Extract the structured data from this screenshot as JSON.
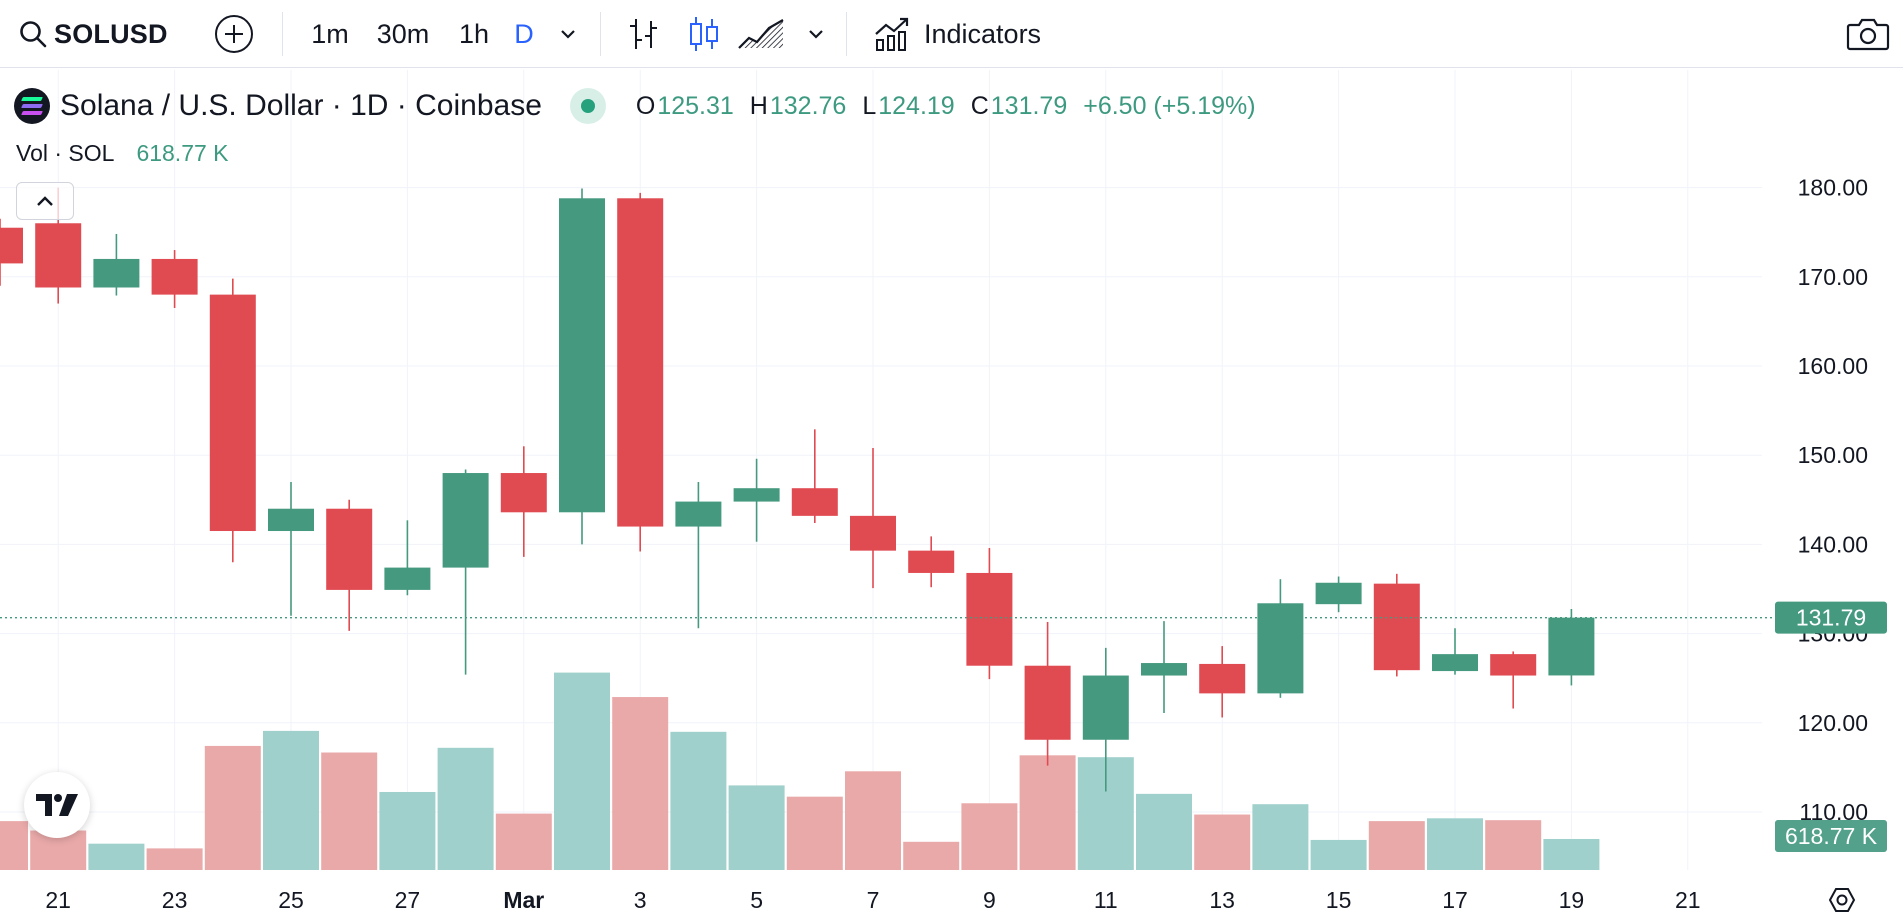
{
  "toolbar": {
    "symbol": "SOLUSD",
    "timeframes": [
      "1m",
      "30m",
      "1h",
      "D"
    ],
    "active_timeframe": "D",
    "indicators_label": "Indicators"
  },
  "legend": {
    "title": "Solana / U.S. Dollar · 1D · Coinbase",
    "open_label": "O",
    "open": "125.31",
    "high_label": "H",
    "high": "132.76",
    "low_label": "L",
    "low": "124.19",
    "close_label": "C",
    "close": "131.79",
    "change": "+6.50 (+5.19%)"
  },
  "volume_legend": {
    "label": "Vol · SOL",
    "value": "618.77 K"
  },
  "colors": {
    "up": "#45997f",
    "down": "#e04a51",
    "vol_up": "#a0d0cc",
    "vol_down": "#eaa9a9",
    "price_tag": "#45997f"
  },
  "chart_data": {
    "type": "candlestick",
    "x_tick_labels": [
      "21",
      "23",
      "25",
      "27",
      "Mar",
      "3",
      "5",
      "7",
      "9",
      "11",
      "13",
      "15",
      "17",
      "19",
      "21"
    ],
    "y_tick_labels": [
      "180.00",
      "170.00",
      "160.00",
      "150.00",
      "140.00",
      "130.00",
      "120.00",
      "110.00"
    ],
    "ylim": [
      103.5,
      187.8
    ],
    "last_price": "131.79",
    "last_price_value": 131.79,
    "last_volume": "618.77 K",
    "candles": [
      {
        "date": "Feb 20",
        "open": 175.5,
        "high": 176.5,
        "low": 169.0,
        "close": 171.5,
        "volume": 0.52
      },
      {
        "date": "Feb 21",
        "open": 176.0,
        "high": 180.0,
        "low": 167.0,
        "close": 168.8,
        "volume": 0.42
      },
      {
        "date": "Feb 22",
        "open": 168.8,
        "high": 174.8,
        "low": 167.9,
        "close": 172.0,
        "volume": 0.28
      },
      {
        "date": "Feb 23",
        "open": 172.0,
        "high": 173.0,
        "low": 166.5,
        "close": 168.0,
        "volume": 0.23
      },
      {
        "date": "Feb 24",
        "open": 168.0,
        "high": 169.8,
        "low": 138.0,
        "close": 141.5,
        "volume": 1.32
      },
      {
        "date": "Feb 25",
        "open": 141.5,
        "high": 147.0,
        "low": 132.0,
        "close": 144.0,
        "volume": 1.48
      },
      {
        "date": "Feb 26",
        "open": 144.0,
        "high": 145.0,
        "low": 130.3,
        "close": 134.9,
        "volume": 1.25
      },
      {
        "date": "Feb 27",
        "open": 134.9,
        "high": 142.7,
        "low": 134.3,
        "close": 137.4,
        "volume": 0.83
      },
      {
        "date": "Feb 28",
        "open": 137.4,
        "high": 148.4,
        "low": 125.4,
        "close": 148.0,
        "volume": 1.3
      },
      {
        "date": "Mar 1",
        "open": 148.0,
        "high": 151.0,
        "low": 138.6,
        "close": 143.6,
        "volume": 0.6
      },
      {
        "date": "Mar 2",
        "open": 143.6,
        "high": 179.9,
        "low": 140.0,
        "close": 178.8,
        "volume": 2.1
      },
      {
        "date": "Mar 3",
        "open": 178.8,
        "high": 179.4,
        "low": 139.2,
        "close": 142.0,
        "volume": 1.84
      },
      {
        "date": "Mar 4",
        "open": 142.0,
        "high": 147.0,
        "low": 130.6,
        "close": 144.8,
        "volume": 1.47
      },
      {
        "date": "Mar 5",
        "open": 144.8,
        "high": 149.6,
        "low": 140.3,
        "close": 146.3,
        "volume": 0.9
      },
      {
        "date": "Mar 6",
        "open": 146.3,
        "high": 152.9,
        "low": 142.4,
        "close": 143.2,
        "volume": 0.78
      },
      {
        "date": "Mar 7",
        "open": 143.2,
        "high": 150.8,
        "low": 135.1,
        "close": 139.3,
        "volume": 1.05
      },
      {
        "date": "Mar 8",
        "open": 139.3,
        "high": 140.9,
        "low": 135.2,
        "close": 136.8,
        "volume": 0.3
      },
      {
        "date": "Mar 9",
        "open": 136.8,
        "high": 139.6,
        "low": 124.9,
        "close": 126.4,
        "volume": 0.71
      },
      {
        "date": "Mar 10",
        "open": 126.4,
        "high": 131.3,
        "low": 115.2,
        "close": 118.1,
        "volume": 1.22
      },
      {
        "date": "Mar 11",
        "open": 118.1,
        "high": 128.4,
        "low": 112.3,
        "close": 125.3,
        "volume": 1.2
      },
      {
        "date": "Mar 12",
        "open": 125.3,
        "high": 131.4,
        "low": 121.1,
        "close": 126.7,
        "volume": 0.81
      },
      {
        "date": "Mar 13",
        "open": 126.6,
        "high": 128.6,
        "low": 120.6,
        "close": 123.3,
        "volume": 0.59
      },
      {
        "date": "Mar 14",
        "open": 123.3,
        "high": 136.1,
        "low": 122.8,
        "close": 133.4,
        "volume": 0.7
      },
      {
        "date": "Mar 15",
        "open": 133.3,
        "high": 136.4,
        "low": 132.4,
        "close": 135.7,
        "volume": 0.32
      },
      {
        "date": "Mar 16",
        "open": 135.6,
        "high": 136.7,
        "low": 125.2,
        "close": 125.9,
        "volume": 0.52
      },
      {
        "date": "Mar 17",
        "open": 125.8,
        "high": 130.6,
        "low": 125.4,
        "close": 127.7,
        "volume": 0.55
      },
      {
        "date": "Mar 18",
        "open": 127.7,
        "high": 128.0,
        "low": 121.6,
        "close": 125.3,
        "volume": 0.53
      },
      {
        "date": "Mar 19",
        "open": 125.31,
        "high": 132.76,
        "low": 124.19,
        "close": 131.79,
        "volume": 0.33
      }
    ]
  }
}
